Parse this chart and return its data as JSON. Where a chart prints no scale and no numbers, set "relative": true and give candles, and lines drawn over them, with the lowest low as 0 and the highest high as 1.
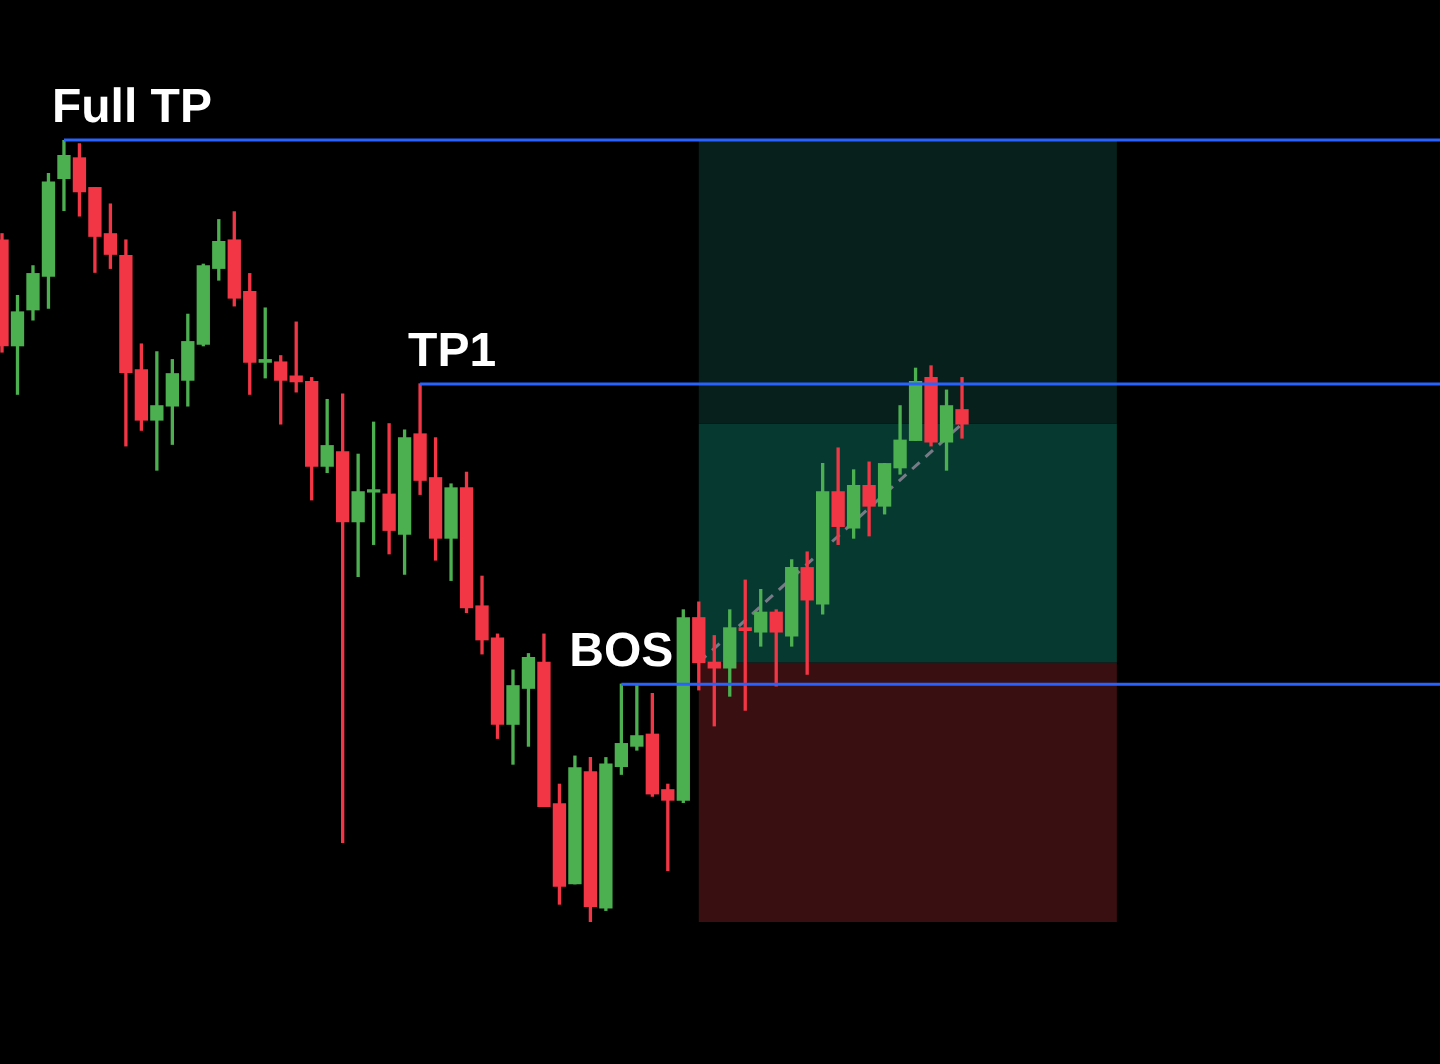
{
  "chart_data": {
    "type": "candlestick",
    "relative": true,
    "categories": [
      null,
      null,
      null,
      null,
      null,
      null,
      null,
      null,
      null,
      null,
      null,
      null,
      null,
      null,
      null,
      null,
      null,
      null,
      null,
      null,
      null,
      null,
      null,
      null,
      null,
      null,
      null,
      null,
      null,
      null,
      null,
      null,
      null,
      null,
      null,
      null,
      null,
      null,
      null,
      null,
      null,
      null,
      null,
      null,
      null,
      null,
      null,
      null,
      null,
      null,
      null,
      null,
      null,
      null,
      null,
      null,
      null,
      null,
      null,
      null,
      null,
      null,
      null
    ],
    "ohlc": [
      [
        0.872,
        0.88,
        0.729,
        0.737
      ],
      [
        0.737,
        0.801,
        0.675,
        0.78
      ],
      [
        0.783,
        0.839,
        0.77,
        0.829
      ],
      [
        0.826,
        0.957,
        0.785,
        0.946
      ],
      [
        0.951,
        1,
        0.91,
        0.98
      ],
      [
        0.977,
        0.995,
        0.903,
        0.934
      ],
      [
        0.939,
        0.939,
        0.831,
        0.877
      ],
      [
        0.88,
        0.918,
        0.836,
        0.854
      ],
      [
        0.852,
        0.872,
        0.609,
        0.703
      ],
      [
        0.706,
        0.739,
        0.629,
        0.642
      ],
      [
        0.642,
        0.729,
        0.578,
        0.66
      ],
      [
        0.66,
        0.719,
        0.611,
        0.701
      ],
      [
        0.693,
        0.777,
        0.66,
        0.742
      ],
      [
        0.739,
        0.841,
        0.737,
        0.839
      ],
      [
        0.836,
        0.898,
        0.821,
        0.87
      ],
      [
        0.872,
        0.908,
        0.788,
        0.798
      ],
      [
        0.806,
        0.829,
        0.675,
        0.716
      ],
      [
        0.716,
        0.785,
        0.696,
        0.719
      ],
      [
        0.716,
        0.724,
        0.637,
        0.693
      ],
      [
        0.698,
        0.767,
        0.678,
        0.691
      ],
      [
        0.691,
        0.696,
        0.54,
        0.583
      ],
      [
        0.583,
        0.668,
        0.575,
        0.609
      ],
      [
        0.601,
        0.675,
        0.102,
        0.512
      ],
      [
        0.512,
        0.598,
        0.442,
        0.55
      ],
      [
        0.55,
        0.639,
        0.483,
        0.552
      ],
      [
        0.547,
        0.637,
        0.471,
        0.501
      ],
      [
        0.496,
        0.629,
        0.445,
        0.619
      ],
      [
        0.624,
        0.688,
        0.547,
        0.565
      ],
      [
        0.568,
        0.619,
        0.463,
        0.491
      ],
      [
        0.491,
        0.56,
        0.437,
        0.555
      ],
      [
        0.555,
        0.575,
        0.396,
        0.402
      ],
      [
        0.404,
        0.442,
        0.343,
        0.361
      ],
      [
        0.363,
        0.368,
        0.235,
        0.253
      ],
      [
        0.253,
        0.322,
        0.202,
        0.302
      ],
      [
        0.299,
        0.343,
        0.225,
        0.338
      ],
      [
        0.332,
        0.368,
        0.148,
        0.148
      ],
      [
        0.151,
        0.176,
        0.023,
        0.046
      ],
      [
        0.049,
        0.212,
        0.049,
        0.197
      ],
      [
        0.192,
        0.21,
        0,
        0.02
      ],
      [
        0.018,
        0.21,
        0.015,
        0.202
      ],
      [
        0.199,
        0.304,
        0.189,
        0.228
      ],
      [
        0.225,
        0.302,
        0.22,
        0.238
      ],
      [
        0.24,
        0.292,
        0.161,
        0.164
      ],
      [
        0.169,
        0.176,
        0.066,
        0.156
      ],
      [
        0.156,
        0.399,
        0.153,
        0.389
      ],
      [
        0.389,
        0.409,
        0.297,
        0.332
      ],
      [
        0.332,
        0.366,
        0.251,
        0.325
      ],
      [
        0.325,
        0.399,
        0.289,
        0.376
      ],
      [
        0.376,
        0.437,
        0.271,
        0.373
      ],
      [
        0.371,
        0.425,
        0.353,
        0.396
      ],
      [
        0.396,
        0.399,
        0.302,
        0.371
      ],
      [
        0.366,
        0.463,
        0.353,
        0.453
      ],
      [
        0.453,
        0.473,
        0.317,
        0.412
      ],
      [
        0.407,
        0.586,
        0.394,
        0.55
      ],
      [
        0.55,
        0.606,
        0.483,
        0.506
      ],
      [
        0.504,
        0.578,
        0.491,
        0.558
      ],
      [
        0.558,
        0.588,
        0.494,
        0.532
      ],
      [
        0.532,
        0.586,
        0.522,
        0.586
      ],
      [
        0.581,
        0.66,
        0.573,
        0.616
      ],
      [
        0.616,
        0.708,
        0.616,
        0.691
      ],
      [
        0.696,
        0.711,
        0.609,
        0.614
      ],
      [
        0.614,
        0.68,
        0.578,
        0.66
      ],
      [
        0.655,
        0.696,
        0.619,
        0.637
      ]
    ],
    "colors": [
      "#f23645",
      "#4caf50",
      "#4caf50",
      "#4caf50",
      "#4caf50",
      "#f23645",
      "#f23645",
      "#f23645",
      "#f23645",
      "#f23645",
      "#4caf50",
      "#4caf50",
      "#4caf50",
      "#4caf50",
      "#4caf50",
      "#f23645",
      "#f23645",
      "#4caf50",
      "#f23645",
      "#f23645",
      "#f23645",
      "#4caf50",
      "#f23645",
      "#4caf50",
      "#4caf50",
      "#f23645",
      "#4caf50",
      "#f23645",
      "#f23645",
      "#4caf50",
      "#f23645",
      "#f23645",
      "#f23645",
      "#4caf50",
      "#4caf50",
      "#f23645",
      "#f23645",
      "#4caf50",
      "#f23645",
      "#4caf50",
      "#4caf50",
      "#4caf50",
      "#f23645",
      "#f23645",
      "#4caf50",
      "#f23645",
      "#f23645",
      "#4caf50",
      "#f23645",
      "#4caf50",
      "#f23645",
      "#4caf50",
      "#f23645",
      "#4caf50",
      "#f23645",
      "#4caf50",
      "#f23645",
      "#4caf50",
      "#4caf50",
      "#4caf50",
      "#f23645",
      "#4caf50",
      "#f23645"
    ],
    "series": [
      {
        "type": "line",
        "color": "#787b86",
        "line_style": "dashed",
        "values": [
          null,
          null,
          null,
          null,
          null,
          null,
          null,
          null,
          null,
          null,
          null,
          null,
          null,
          null,
          null,
          null,
          null,
          null,
          null,
          null,
          null,
          null,
          null,
          null,
          null,
          null,
          null,
          null,
          null,
          null,
          null,
          null,
          null,
          null,
          null,
          null,
          null,
          null,
          null,
          null,
          null,
          null,
          null,
          null,
          null,
          0.332,
          null,
          null,
          null,
          null,
          null,
          null,
          null,
          null,
          null,
          null,
          null,
          null,
          null,
          null,
          null,
          null,
          0.637
        ]
      }
    ],
    "ref_lines": [
      {
        "axis": "y",
        "value": 1,
        "label": "Full TP",
        "color": "#2962ff"
      },
      {
        "axis": "y",
        "value": 0.688,
        "label": "TP1",
        "color": "#2962ff"
      },
      {
        "axis": "y",
        "value": 0.304,
        "label": "BOS",
        "color": "#2962ff"
      }
    ],
    "bands": [
      {
        "axis": "y",
        "from": 0,
        "to": 0.332,
        "color": "#3a0f12"
      },
      {
        "axis": "y",
        "from": 0.332,
        "to": 0.637,
        "color": "#063a31"
      },
      {
        "axis": "y",
        "from": 0.637,
        "to": 1,
        "color": "#07201b"
      }
    ]
  }
}
